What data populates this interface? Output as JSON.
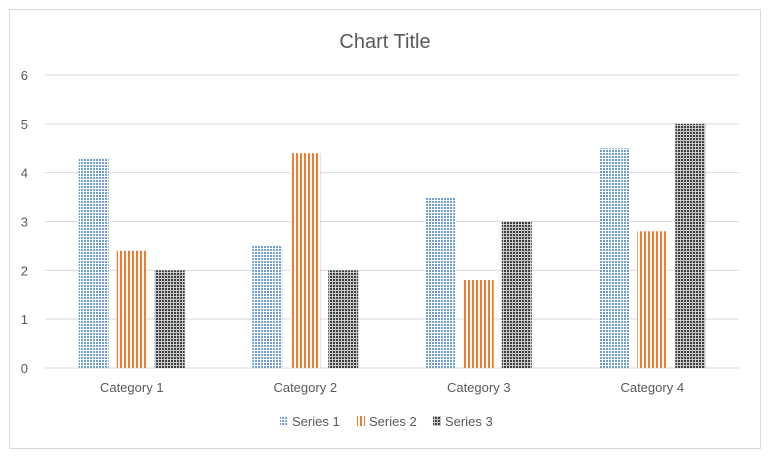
{
  "chart_data": {
    "type": "bar",
    "title": "Chart Title",
    "categories": [
      "Category 1",
      "Category 2",
      "Category 3",
      "Category 4"
    ],
    "series": [
      {
        "name": "Series 1",
        "values": [
          4.3,
          2.5,
          3.5,
          4.5
        ],
        "color": "#6f9fcf",
        "pattern": "dots"
      },
      {
        "name": "Series 2",
        "values": [
          2.4,
          4.4,
          1.8,
          2.8
        ],
        "color": "#ed7d31",
        "pattern": "vertical-stripes"
      },
      {
        "name": "Series 3",
        "values": [
          2,
          2,
          3,
          5
        ],
        "color": "#404040",
        "pattern": "checker"
      }
    ],
    "ylim": [
      0,
      6
    ],
    "yticks": [
      0,
      1,
      2,
      3,
      4,
      5,
      6
    ],
    "grid": true,
    "legend": "bottom",
    "xlabel": "",
    "ylabel": ""
  }
}
